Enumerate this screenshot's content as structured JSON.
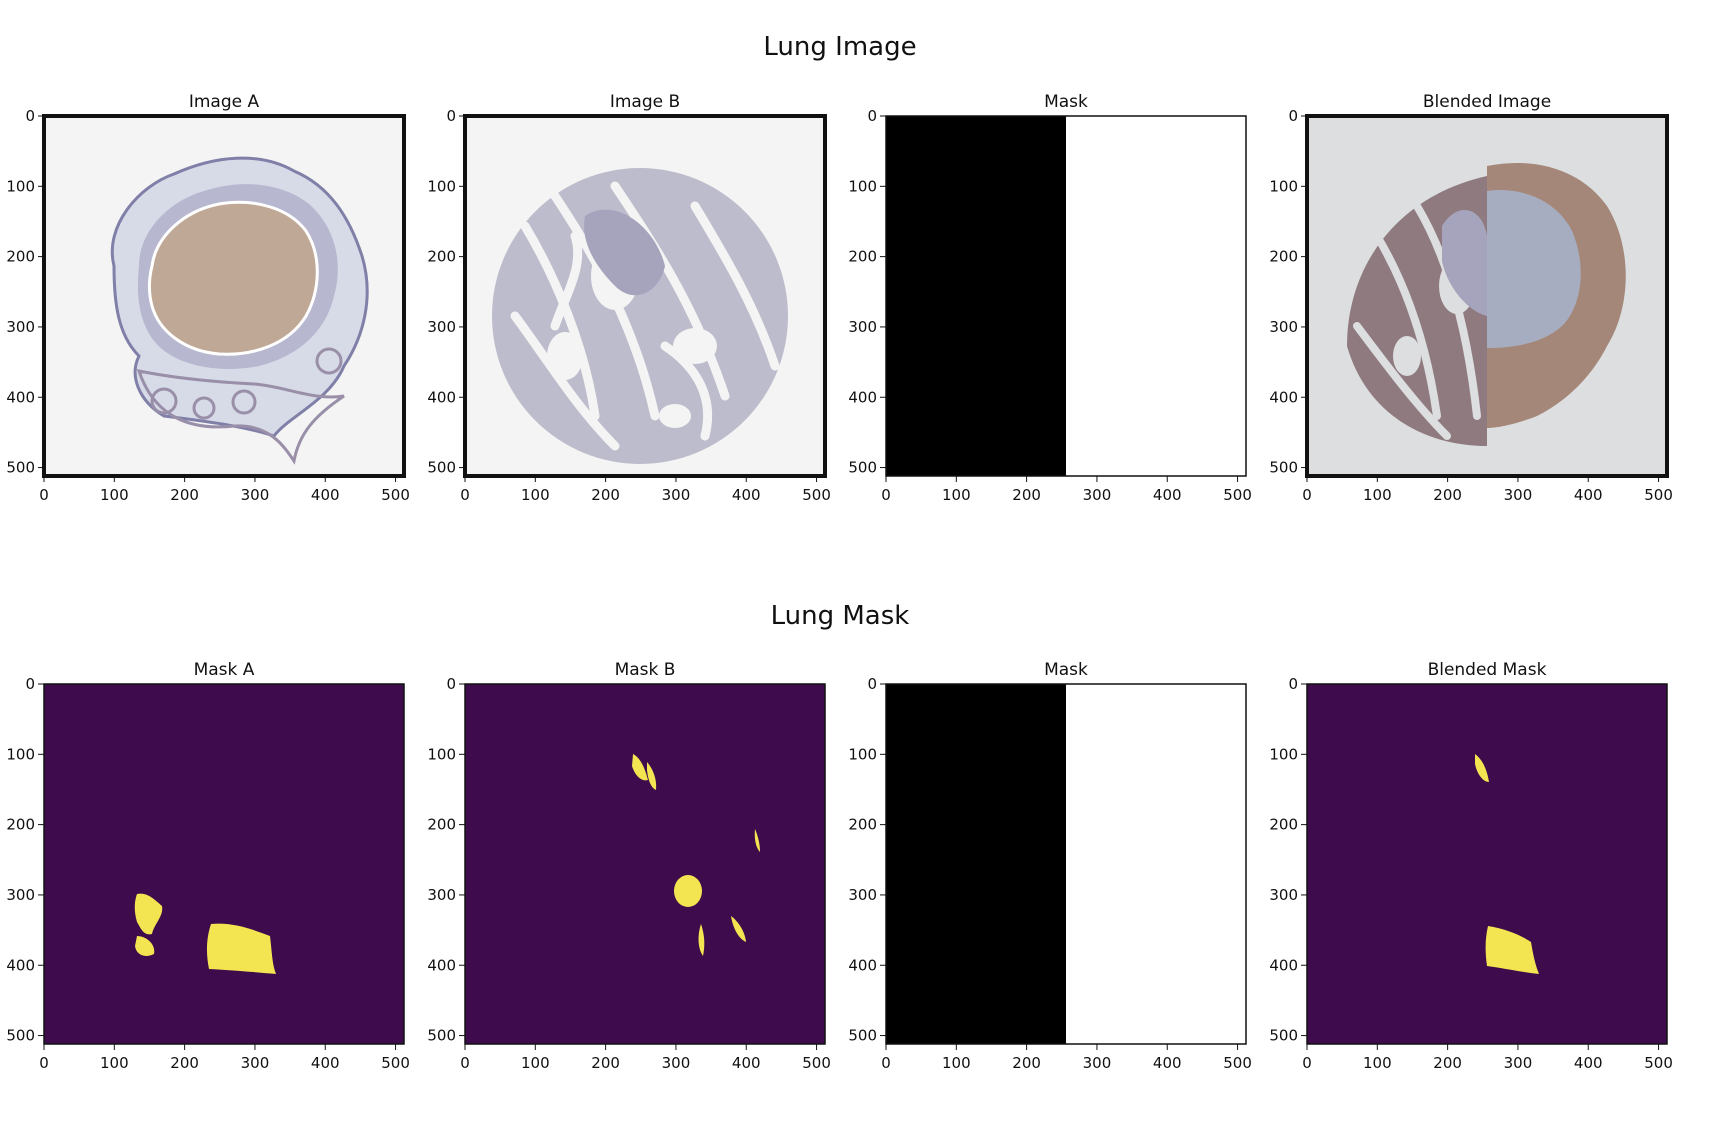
{
  "rows": [
    {
      "title": "Lung Image",
      "panels": [
        {
          "title": "Image A",
          "kind": "tissue-a"
        },
        {
          "title": "Image B",
          "kind": "tissue-b"
        },
        {
          "title": "Mask",
          "kind": "split"
        },
        {
          "title": "Blended Image",
          "kind": "tissue-blend"
        }
      ]
    },
    {
      "title": "Lung Mask",
      "panels": [
        {
          "title": "Mask A",
          "kind": "mask"
        },
        {
          "title": "Mask B",
          "kind": "mask"
        },
        {
          "title": "Mask",
          "kind": "split"
        },
        {
          "title": "Blended Mask",
          "kind": "mask"
        }
      ]
    }
  ],
  "axis": {
    "xticks": [
      "0",
      "100",
      "200",
      "300",
      "400",
      "500"
    ],
    "yticks": [
      "0",
      "100",
      "200",
      "300",
      "400",
      "500"
    ]
  },
  "colors": {
    "mask_bg": "#3e0b4c",
    "mask_fg": "#f3e552",
    "tissue_bg": "#f4f4f4",
    "tissue_b_fill": "#6d6a86",
    "blend_bg": "#dcdedf"
  }
}
